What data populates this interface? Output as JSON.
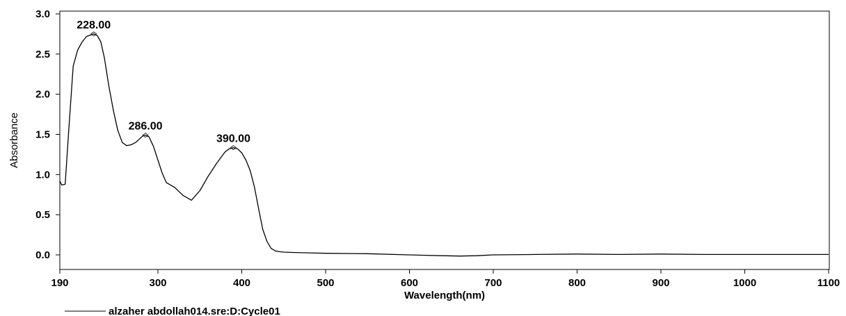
{
  "chart_data": {
    "type": "line",
    "xlabel": "Wavelength(nm)",
    "ylabel": "Absorbance",
    "xlim": [
      190,
      1100
    ],
    "ylim": [
      -0.1,
      3.0
    ],
    "x_ticks": [
      190,
      300,
      400,
      500,
      600,
      700,
      800,
      900,
      1000,
      1100
    ],
    "y_ticks": [
      0.0,
      0.5,
      1.0,
      1.5,
      2.0,
      2.5,
      3.0
    ],
    "x_tick_labels": [
      "190",
      "300",
      "400",
      "500",
      "600",
      "700",
      "800",
      "900",
      "1000",
      "1100"
    ],
    "y_tick_labels": [
      "0.0",
      "0.5",
      "1.0",
      "1.5",
      "2.0",
      "2.5",
      "3.0"
    ],
    "grid": false,
    "legend": "bottom-left",
    "series": [
      {
        "name": "alzaher abdollah014.sre:D:Cycle01",
        "color": "#000000",
        "x": [
          190,
          192,
          196,
          200,
          205,
          210,
          215,
          220,
          225,
          228,
          232,
          236,
          240,
          245,
          250,
          255,
          260,
          265,
          270,
          275,
          280,
          283,
          286,
          290,
          295,
          300,
          305,
          310,
          320,
          330,
          340,
          350,
          360,
          370,
          380,
          385,
          390,
          395,
          400,
          405,
          410,
          415,
          420,
          425,
          430,
          435,
          440,
          445,
          450,
          460,
          480,
          500,
          550,
          600,
          620,
          640,
          660,
          680,
          700,
          750,
          800,
          850,
          900,
          950,
          1000,
          1050,
          1100
        ],
        "y": [
          0.92,
          0.87,
          0.88,
          1.55,
          2.35,
          2.55,
          2.65,
          2.72,
          2.74,
          2.75,
          2.73,
          2.65,
          2.45,
          2.1,
          1.8,
          1.55,
          1.4,
          1.36,
          1.37,
          1.4,
          1.45,
          1.48,
          1.49,
          1.47,
          1.35,
          1.18,
          1.02,
          0.9,
          0.84,
          0.74,
          0.68,
          0.8,
          0.98,
          1.14,
          1.28,
          1.32,
          1.335,
          1.32,
          1.27,
          1.18,
          1.05,
          0.85,
          0.58,
          0.32,
          0.17,
          0.08,
          0.05,
          0.04,
          0.035,
          0.03,
          0.025,
          0.02,
          0.015,
          0.0,
          -0.005,
          -0.01,
          -0.015,
          -0.01,
          0.0,
          0.005,
          0.01,
          0.005,
          0.01,
          0.005,
          0.005,
          0.005,
          0.005
        ]
      }
    ],
    "annotations": [
      {
        "x": 228,
        "y": 2.75,
        "text": "228.00"
      },
      {
        "x": 286,
        "y": 1.49,
        "text": "286.00"
      },
      {
        "x": 390,
        "y": 1.335,
        "text": "390.00"
      }
    ]
  }
}
